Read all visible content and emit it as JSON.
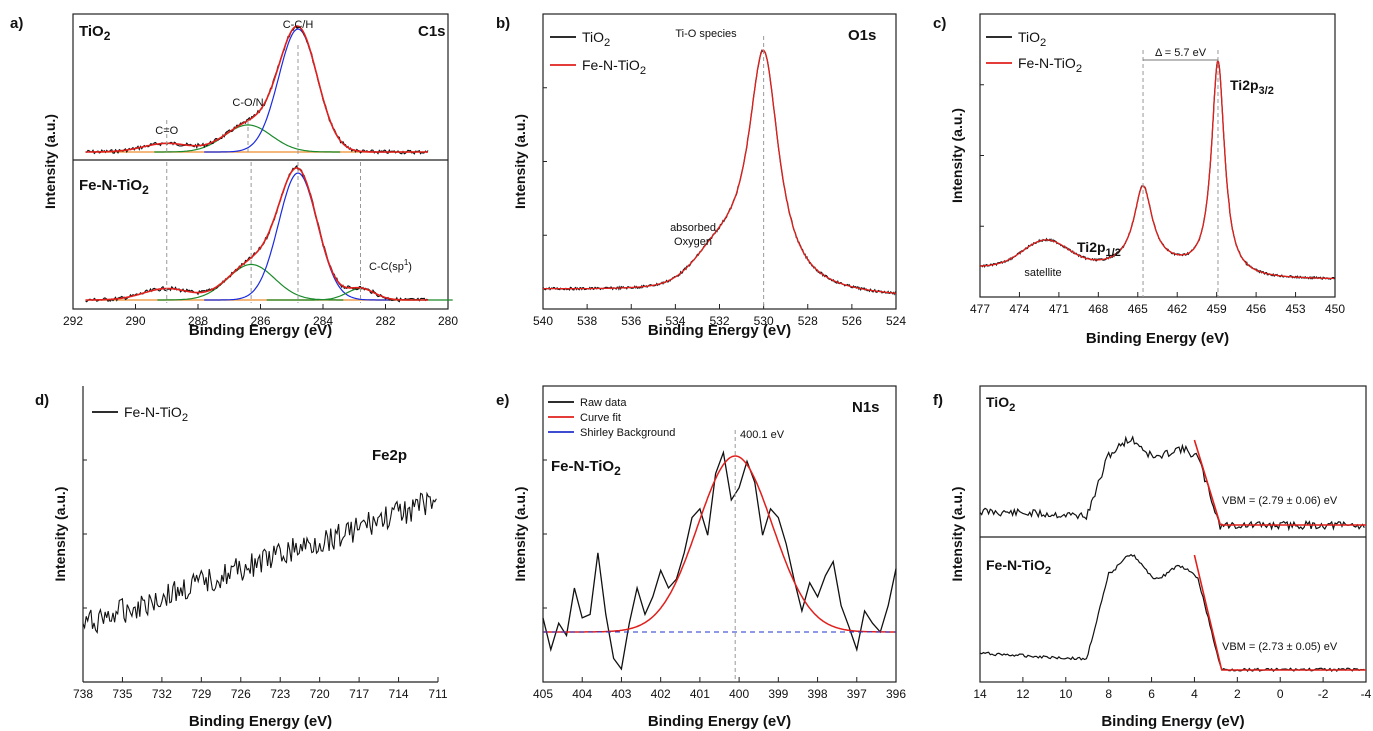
{
  "colors": {
    "raw": "#111111",
    "fit": "#e0201c",
    "background": "#f0a050",
    "shirley": "#2233cc",
    "comp_blue": "#1a2be0",
    "comp_green": "#1a8a2a",
    "guide": "#999999"
  },
  "chart_data": [
    {
      "id": "a",
      "panel_label": "a)",
      "type": "line",
      "title": "C1s",
      "xlabel": "Binding Energy (eV)",
      "ylabel": "Intensity (a.u.)",
      "xlim": [
        292,
        280
      ],
      "xticks": [
        "292",
        "290",
        "288",
        "286",
        "284",
        "282",
        "280"
      ],
      "subpanels": [
        {
          "name": "TiO2",
          "label_main": "TiO",
          "label_sub": "2",
          "peaks": [
            {
              "label": "C=O",
              "center": 289.0,
              "height": 0.07
            },
            {
              "label": "C-O/N",
              "center": 286.4,
              "height": 0.22
            },
            {
              "label": "C-C/H",
              "center": 284.8,
              "height": 1.0
            }
          ]
        },
        {
          "name": "Fe-N-TiO2",
          "label_main": "Fe-N-TiO",
          "label_sub": "2",
          "peaks": [
            {
              "label": "",
              "center": 289.0,
              "height": 0.09
            },
            {
              "label": "",
              "center": 286.3,
              "height": 0.28
            },
            {
              "label": "",
              "center": 284.8,
              "height": 1.0
            },
            {
              "label": "C-C(sp",
              "center": 282.8,
              "height": 0.09
            }
          ],
          "sp_superscript": "1",
          "sp_close": ")"
        }
      ]
    },
    {
      "id": "b",
      "panel_label": "b)",
      "type": "line",
      "title": "O1s",
      "xlabel": "Binding Energy (eV)",
      "ylabel": "Intensity (a.u.)",
      "xlim": [
        540,
        524
      ],
      "xticks": [
        "540",
        "538",
        "536",
        "534",
        "532",
        "530",
        "528",
        "526",
        "524"
      ],
      "peak_center": 530.0,
      "shoulder_center": 532.0,
      "annotations": [
        "Ti-O species",
        "absorbed",
        "Oxygen"
      ],
      "series": [
        {
          "name_main": "TiO",
          "name_sub": "2",
          "color": "#111111"
        },
        {
          "name_main": "Fe-N-TiO",
          "name_sub": "2",
          "color": "#e0201c"
        }
      ]
    },
    {
      "id": "c",
      "panel_label": "c)",
      "type": "line",
      "title": "",
      "xlabel": "Binding Energy (eV)",
      "ylabel": "Intensity (a.u.)",
      "xlim": [
        477,
        450
      ],
      "xticks": [
        "477",
        "474",
        "471",
        "468",
        "465",
        "462",
        "459",
        "456",
        "453",
        "450"
      ],
      "peaks": [
        {
          "label": "satellite",
          "center": 472.0,
          "height": 0.12
        },
        {
          "label": "Ti2p",
          "sub": "1/2",
          "center": 464.6,
          "height": 0.37
        },
        {
          "label": "Ti2p",
          "sub": "3/2",
          "center": 458.9,
          "height": 1.0
        }
      ],
      "splitting_label": "Δ = 5.7 eV",
      "series": [
        {
          "name_main": "TiO",
          "name_sub": "2",
          "color": "#111111"
        },
        {
          "name_main": "Fe-N-TiO",
          "name_sub": "2",
          "color": "#e0201c"
        }
      ]
    },
    {
      "id": "d",
      "panel_label": "d)",
      "type": "line",
      "title": "Fe2p",
      "xlabel": "Binding Energy (eV)",
      "ylabel": "Intensity (a.u.)",
      "xlim": [
        738,
        711
      ],
      "xticks": [
        "738",
        "735",
        "732",
        "729",
        "726",
        "723",
        "720",
        "717",
        "714",
        "711"
      ],
      "series": [
        {
          "name_main": "Fe-N-TiO",
          "name_sub": "2",
          "color": "#111111"
        }
      ]
    },
    {
      "id": "e",
      "panel_label": "e)",
      "type": "line",
      "title": "N1s",
      "xlabel": "Binding Energy (eV)",
      "ylabel": "Intensity (a.u.)",
      "xlim": [
        405,
        396
      ],
      "xticks": [
        "405",
        "404",
        "403",
        "402",
        "401",
        "400",
        "399",
        "398",
        "397",
        "396"
      ],
      "peak_center": 400.1,
      "peak_label": "400.1 eV",
      "sample_main": "Fe-N-TiO",
      "sample_sub": "2",
      "series": [
        {
          "name": "Raw data",
          "color": "#111111"
        },
        {
          "name": "Curve fit",
          "color": "#e0201c"
        },
        {
          "name": "Shirley Background",
          "color": "#2233cc"
        }
      ]
    },
    {
      "id": "f",
      "panel_label": "f)",
      "type": "line",
      "title": "",
      "xlabel": "Binding Energy (eV)",
      "ylabel": "Intensity (a.u.)",
      "xlim": [
        14,
        -4
      ],
      "xticks": [
        "14",
        "12",
        "10",
        "8",
        "6",
        "4",
        "2",
        "0",
        "-2",
        "-4"
      ],
      "subpanels": [
        {
          "label_main": "TiO",
          "label_sub": "2",
          "vbm_label": "VBM = (2.79 ± 0.06) eV",
          "vbm": 2.79
        },
        {
          "label_main": "Fe-N-TiO",
          "label_sub": "2",
          "vbm_label": "VBM = (2.73 ± 0.05) eV",
          "vbm": 2.73
        }
      ]
    }
  ]
}
